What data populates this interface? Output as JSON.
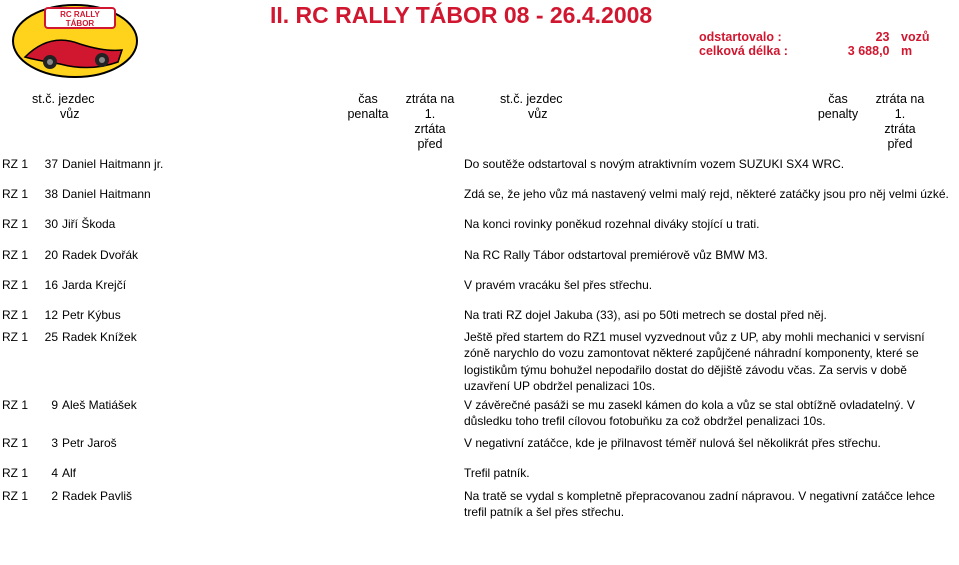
{
  "title": "II. RC RALLY TÁBOR 08 - 26.4.2008",
  "meta": {
    "line1_label": "odstartovalo  :",
    "line1_value": "23",
    "line1_unit": "vozů",
    "line2_label": "celková délka :",
    "line2_value": "3 688,0",
    "line2_unit": "m"
  },
  "headers": {
    "stc": "st.č.",
    "jezdec": "jezdec",
    "vuz": "vůz",
    "cas": "čas",
    "penalta": "penalta",
    "penalty": "penalty",
    "ztrata_na1": "ztráta na 1.",
    "zrtata_pred": "zrtáta před",
    "ztrata_pred": "ztráta před"
  },
  "rows": [
    {
      "rz": "RZ 1",
      "num": "37",
      "name": "Daniel Haitmann jr.",
      "note": "Do soutěže odstartoval s novým atraktivním vozem SUZUKI SX4 WRC.",
      "gap": 14
    },
    {
      "rz": "RZ 1",
      "num": "38",
      "name": "Daniel Haitmann",
      "note": "Zdá se, že jeho vůz má nastavený velmi malý rejd, některé zatáčky jsou pro něj velmi úzké.",
      "gap": 14
    },
    {
      "rz": "RZ 1",
      "num": "30",
      "name": "Jiří Škoda",
      "note": "Na konci rovinky poněkud rozehnal diváky stojící u trati.",
      "gap": 14
    },
    {
      "rz": "RZ 1",
      "num": "20",
      "name": "Radek Dvořák",
      "note": "Na RC Rally Tábor odstartoval premiérově vůz BMW M3.",
      "gap": 14
    },
    {
      "rz": "RZ 1",
      "num": "16",
      "name": "Jarda Krejčí",
      "note": "V pravém vracáku šel přes střechu.",
      "gap": 14
    },
    {
      "rz": "RZ 1",
      "num": "12",
      "name": "Petr Kýbus",
      "note": "Na trati RZ dojel Jakuba (33), asi po 50ti metrech se dostal před něj.",
      "gap": 6
    },
    {
      "rz": "RZ 1",
      "num": "25",
      "name": "Radek Knížek",
      "note": "Ještě před startem do RZ1 musel vyzvednout vůz z UP, aby mohli mechanici v servisní zóně narychlo do vozu zamontovat některé zapůjčené náhradní komponenty, které se logistikům týmu bohužel nepodařilo dostat do dějiště závodu včas. Za servis v době uzavření UP obdržel penalizaci 10s.",
      "gap": 0
    },
    {
      "rz": "RZ 1",
      "num": "9",
      "name": "Aleš Matiášek",
      "note": "V závěrečné pasáži se mu zasekl kámen do kola a vůz se stal obtížně ovladatelný. V důsledku toho trefil cílovou fotobuňku za což obdržel penalizaci 10s.",
      "gap": 6
    },
    {
      "rz": "RZ 1",
      "num": "3",
      "name": "Petr Jaroš",
      "note": "V negativní zatáčce, kde je přilnavost téměř nulová šel několikrát přes střechu.",
      "gap": 14
    },
    {
      "rz": "RZ 1",
      "num": "4",
      "name": "Alf",
      "note": "Trefil patník.",
      "gap": 6
    },
    {
      "rz": "RZ 1",
      "num": "2",
      "name": "Radek Pavliš",
      "note": "Na tratě se vydal s kompletně přepracovanou zadní nápravou. V negativní zatáčce lehce trefil patník a šel přes střechu.",
      "gap": 0
    }
  ],
  "logo_text": "RC RALLY TÁBOR",
  "colors": {
    "red": "#d0172f",
    "yellow": "#ffd21c",
    "black": "#000000"
  }
}
